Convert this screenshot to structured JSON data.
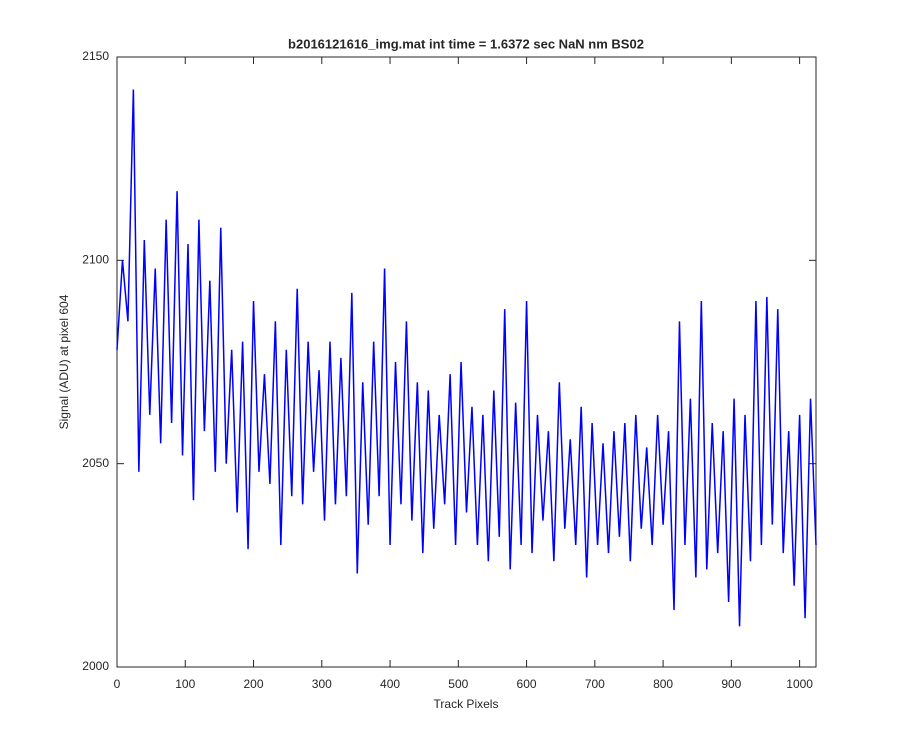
{
  "chart_data": {
    "type": "line",
    "title": "b2016121616_img.mat int time = 1.6372 sec  NaN nm BS02",
    "x_label": "Track Pixels",
    "y_label": "Signal (ADU) at pixel 604",
    "xlim": [
      0,
      1024
    ],
    "xticks": [
      0,
      100,
      200,
      300,
      400,
      500,
      600,
      700,
      800,
      900,
      1000
    ],
    "ylim": [
      2000,
      2150
    ],
    "yticks": [
      2000,
      2050,
      2100,
      2150
    ],
    "x": [
      0,
      8,
      16,
      24,
      32,
      40,
      48,
      56,
      64,
      72,
      80,
      88,
      96,
      104,
      112,
      120,
      128,
      136,
      144,
      152,
      160,
      168,
      176,
      184,
      192,
      200,
      208,
      216,
      224,
      232,
      240,
      248,
      256,
      264,
      272,
      280,
      288,
      296,
      304,
      312,
      320,
      328,
      336,
      344,
      352,
      360,
      368,
      376,
      384,
      392,
      400,
      408,
      416,
      424,
      432,
      440,
      448,
      456,
      464,
      472,
      480,
      488,
      496,
      504,
      512,
      520,
      528,
      536,
      544,
      552,
      560,
      568,
      576,
      584,
      592,
      600,
      608,
      616,
      624,
      632,
      640,
      648,
      656,
      664,
      672,
      680,
      688,
      696,
      704,
      712,
      720,
      728,
      736,
      744,
      752,
      760,
      768,
      776,
      784,
      792,
      800,
      808,
      816,
      824,
      832,
      840,
      848,
      856,
      864,
      872,
      880,
      888,
      896,
      904,
      912,
      920,
      928,
      936,
      944,
      952,
      960,
      968,
      976,
      984,
      992,
      1000,
      1008,
      1016,
      1024
    ],
    "series": [
      {
        "color": "#0000ff",
        "values": [
          2078,
          2100,
          2085,
          2142,
          2048,
          2105,
          2062,
          2098,
          2055,
          2110,
          2060,
          2117,
          2052,
          2104,
          2041,
          2110,
          2058,
          2095,
          2048,
          2108,
          2050,
          2078,
          2038,
          2080,
          2029,
          2090,
          2048,
          2072,
          2045,
          2085,
          2030,
          2078,
          2042,
          2093,
          2040,
          2080,
          2048,
          2073,
          2036,
          2080,
          2040,
          2076,
          2042,
          2092,
          2023,
          2070,
          2035,
          2080,
          2042,
          2098,
          2030,
          2075,
          2040,
          2085,
          2036,
          2070,
          2028,
          2068,
          2034,
          2062,
          2040,
          2072,
          2030,
          2075,
          2038,
          2064,
          2030,
          2062,
          2026,
          2068,
          2032,
          2088,
          2024,
          2065,
          2030,
          2090,
          2028,
          2062,
          2036,
          2058,
          2026,
          2070,
          2034,
          2056,
          2030,
          2064,
          2022,
          2060,
          2030,
          2055,
          2028,
          2058,
          2032,
          2060,
          2026,
          2062,
          2034,
          2054,
          2030,
          2062,
          2035,
          2058,
          2014,
          2085,
          2030,
          2066,
          2022,
          2090,
          2024,
          2060,
          2028,
          2058,
          2016,
          2066,
          2010,
          2062,
          2026,
          2090,
          2030,
          2091,
          2035,
          2088,
          2028,
          2058,
          2020,
          2062,
          2012,
          2066,
          2030
        ]
      }
    ]
  }
}
